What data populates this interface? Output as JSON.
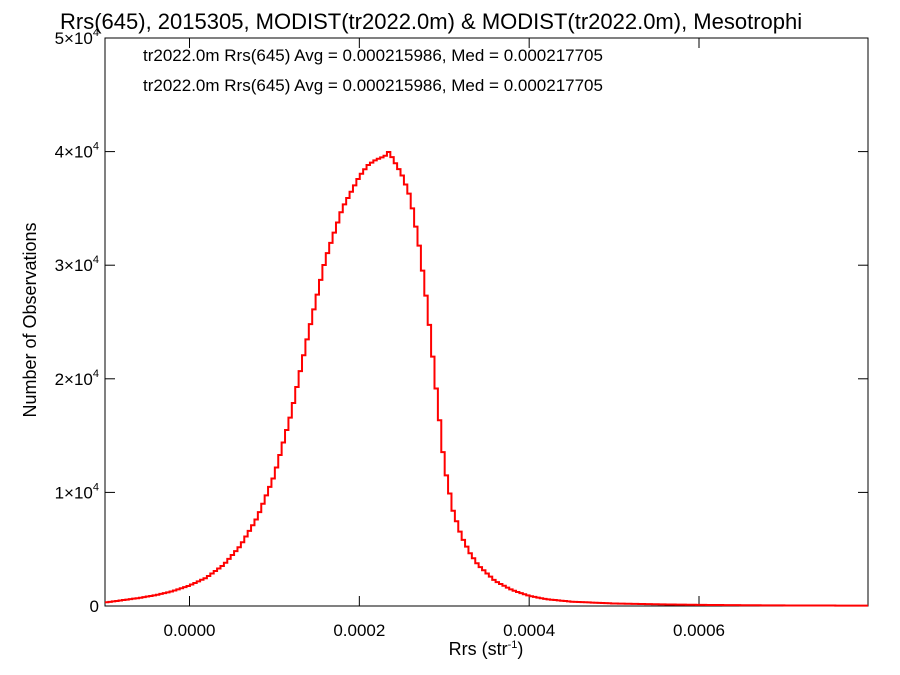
{
  "chart_data": {
    "type": "line",
    "title": "Rrs(645), 2015305, MODIST(tr2022.0m) & MODIST(tr2022.0m), Mesotrophi",
    "xlabel_main": "Rrs (str",
    "xlabel_sup": "-1",
    "xlabel_close": ")",
    "ylabel": "Number of Observations",
    "xlim": [
      -9.95e-05,
      0.000799
    ],
    "ylim": [
      0,
      50000
    ],
    "x_ticks": [
      {
        "value": 0.0,
        "label": "0.0000"
      },
      {
        "value": 0.0002,
        "label": "0.0002"
      },
      {
        "value": 0.0004,
        "label": "0.0004"
      },
      {
        "value": 0.0006,
        "label": "0.0006"
      }
    ],
    "y_ticks": [
      {
        "value": 0,
        "label": "0",
        "exp": ""
      },
      {
        "value": 10000,
        "label": "1×10",
        "exp": "4"
      },
      {
        "value": 20000,
        "label": "2×10",
        "exp": "4"
      },
      {
        "value": 30000,
        "label": "3×10",
        "exp": "4"
      },
      {
        "value": 40000,
        "label": "4×10",
        "exp": "4"
      },
      {
        "value": 50000,
        "label": "5×10",
        "exp": "4"
      }
    ],
    "annotations": [
      {
        "text": "tr2022.0m Rrs(645) Avg = 0.000215986, Med = 0.000217705",
        "color": "#000000"
      },
      {
        "text": "tr2022.0m Rrs(645) Avg = 0.000215986, Med = 0.000217705",
        "color": "#ff0000"
      }
    ],
    "grid": false,
    "series": [
      {
        "color": "#ff0000",
        "x": [
          -0.0001,
          -8e-05,
          -6e-05,
          -4e-05,
          -2e-05,
          0.0,
          2e-05,
          4e-05,
          6e-05,
          8e-05,
          0.0001,
          0.00012,
          0.00014,
          0.00016,
          0.00018,
          0.0002,
          0.00021,
          0.00022,
          0.00023,
          0.000235,
          0.00024,
          0.00025,
          0.00026,
          0.00027,
          0.00028,
          0.00029,
          0.0003,
          0.00031,
          0.00032,
          0.00033,
          0.00034,
          0.00036,
          0.00038,
          0.0004,
          0.00042,
          0.00045,
          0.0005,
          0.00055,
          0.0006,
          0.00065,
          0.0007,
          0.00075,
          0.0008
        ],
        "y": [
          300,
          500,
          700,
          950,
          1300,
          1800,
          2500,
          3600,
          5300,
          7800,
          11500,
          17000,
          24000,
          30500,
          35000,
          37800,
          38800,
          39300,
          39600,
          40000,
          39300,
          38000,
          36000,
          32000,
          26500,
          19500,
          12500,
          8500,
          6200,
          4700,
          3600,
          2200,
          1400,
          900,
          600,
          380,
          220,
          150,
          100,
          70,
          50,
          40,
          30
        ]
      }
    ]
  }
}
